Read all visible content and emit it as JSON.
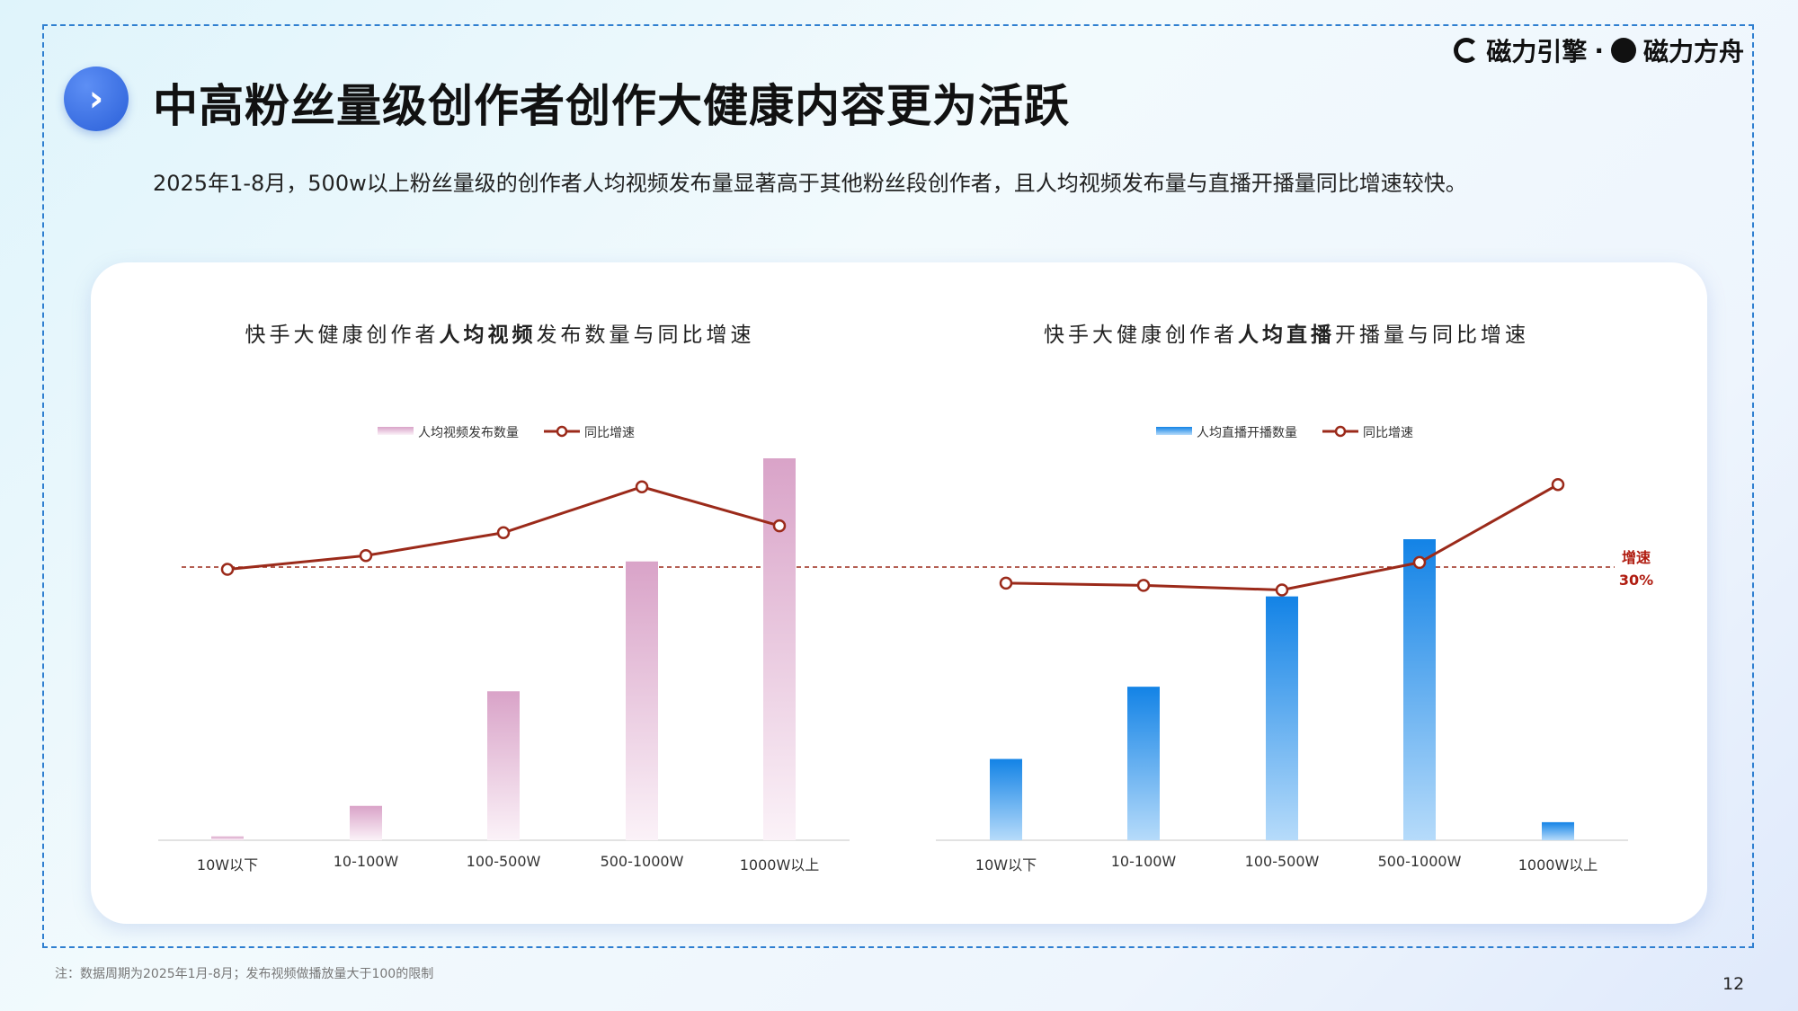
{
  "header": {
    "title": "中高粉丝量级创作者创作大健康内容更为活跃",
    "subtitle": "2025年1-8月，500w以上粉丝量级的创作者人均视频发布量显著高于其他粉丝段创作者，且人均视频发布量与直播开播量同比增速较快。",
    "logo_1": "磁力引擎",
    "logo_sep": "·",
    "logo_2": "磁力方舟",
    "nav_icon": "chevron-right-icon"
  },
  "colors": {
    "video_bar": "#d9a3c8",
    "live_bar": "#1383e6",
    "line": "#9b2a1a",
    "frame": "#2f7fd0"
  },
  "reference": {
    "label_1": "增速",
    "label_2": "30%",
    "value": 30
  },
  "chart_data": [
    {
      "type": "bar",
      "title_parts": [
        "快手大健康创作者",
        "人均视频",
        "发布数量与同比增速"
      ],
      "categories": [
        "10W以下",
        "10-100W",
        "100-500W",
        "500-1000W",
        "1000W以上"
      ],
      "series": [
        {
          "name": "人均视频发布数量",
          "kind": "bar",
          "values": [
            1,
            9,
            39,
            73,
            100
          ]
        },
        {
          "name": "同比增速",
          "kind": "line",
          "values": [
            29.5,
            32.5,
            37.5,
            47.5,
            39
          ]
        }
      ],
      "legend": "top-center",
      "grid": false
    },
    {
      "type": "bar",
      "title_parts": [
        "快手大健康创作者",
        "人均直播",
        "开播量与同比增速"
      ],
      "categories": [
        "10W以下",
        "10-100W",
        "100-500W",
        "500-1000W",
        "1000W以上"
      ],
      "series": [
        {
          "name": "人均直播开播数量",
          "kind": "bar",
          "values": [
            27,
            51,
            81,
            100,
            6
          ]
        },
        {
          "name": "同比增速",
          "kind": "line",
          "values": [
            26.5,
            26,
            25,
            31,
            48
          ]
        }
      ],
      "legend": "top-center",
      "grid": false
    }
  ],
  "footer": {
    "note": "注：数据周期为2025年1月-8月；发布视频做播放量大于100的限制",
    "page": "12"
  }
}
